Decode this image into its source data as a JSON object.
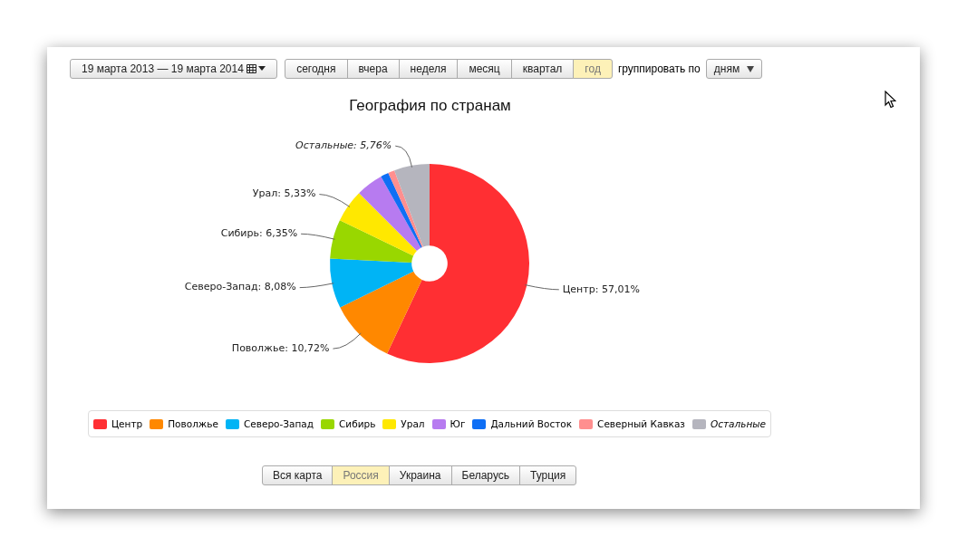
{
  "chart_data": {
    "type": "donut",
    "title": "География по странам",
    "categories": [
      "Центр",
      "Поволжье",
      "Северо-Запад",
      "Сибирь",
      "Урал",
      "Юг",
      "Дальний Восток",
      "Северный Кавказ",
      "Остальные"
    ],
    "values": [
      57.01,
      10.72,
      8.08,
      6.35,
      5.33,
      4.4,
      1.3,
      1.05,
      5.76
    ],
    "colors": [
      "#ff2f33",
      "#ff8800",
      "#00b4f5",
      "#99d700",
      "#ffe800",
      "#b77bf0",
      "#0f6ff5",
      "#ff8f8f",
      "#b5b5be"
    ],
    "value_labels": [
      "Центр: 57,01%",
      "Поволжье: 10,72%",
      "Северо-Запад: 8,08%",
      "Сибирь: 6,35%",
      "Урал: 5,33%",
      null,
      null,
      null,
      "Остальные: 5,76%"
    ],
    "legend": "bottom",
    "annotations": [
      "19 марта 2013 — 19 марта 2014",
      "сегодня",
      "вчера",
      "неделя",
      "месяц",
      "квартал",
      "год",
      "группировать по",
      "дням",
      "Вся карта",
      "Россия",
      "Украина",
      "Беларусь",
      "Турция"
    ]
  }
}
